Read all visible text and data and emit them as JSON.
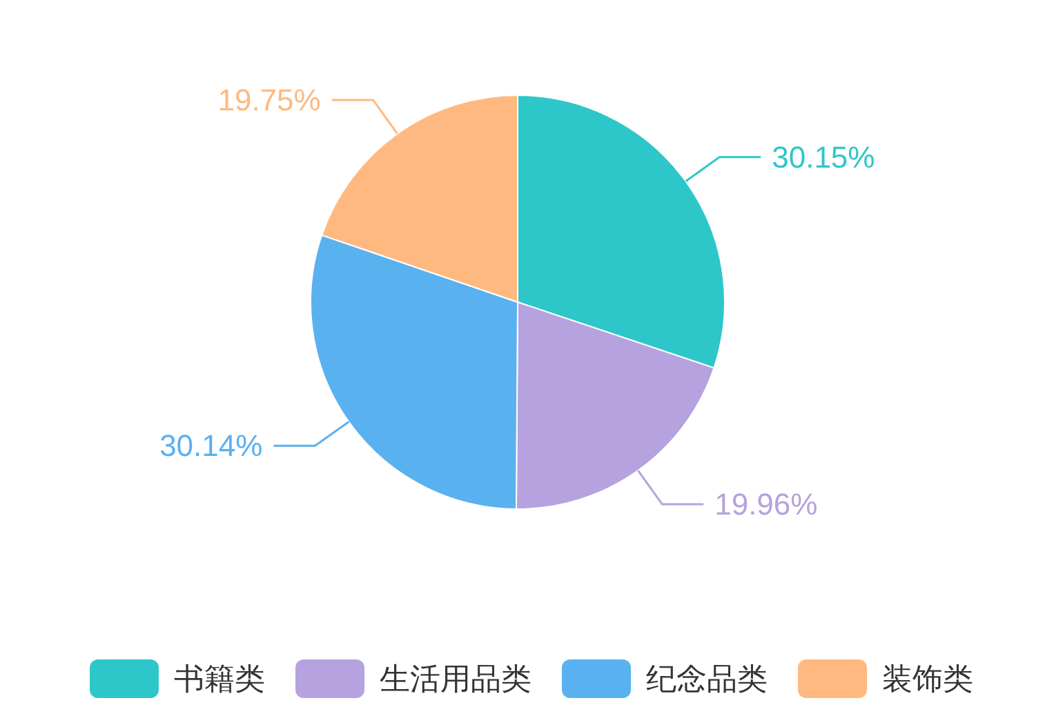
{
  "chart_data": {
    "type": "pie",
    "categories": [
      "书籍类",
      "生活用品类",
      "纪念品类",
      "装饰类"
    ],
    "values": [
      30.15,
      19.96,
      30.14,
      19.75
    ],
    "value_labels": [
      "30.15%",
      "19.96%",
      "30.14%",
      "19.75%"
    ],
    "colors": [
      "#2ec7c9",
      "#b6a2de",
      "#5ab1ef",
      "#ffb980"
    ],
    "legend": "bottom"
  }
}
